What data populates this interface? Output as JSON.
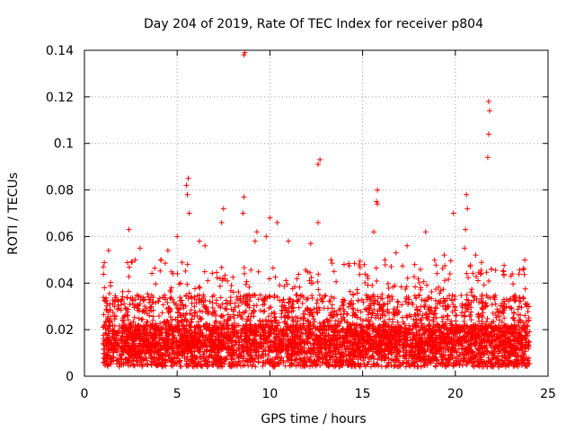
{
  "chart_data": {
    "type": "scatter",
    "title": "Day 204 of 2019, Rate Of TEC Index for receiver p804",
    "xlabel": "GPS time / hours",
    "ylabel": "ROTI / TECUs",
    "xlim": [
      0,
      25
    ],
    "ylim": [
      0,
      0.14
    ],
    "xticks": [
      0,
      5,
      10,
      15,
      20,
      25
    ],
    "yticks": [
      0,
      0.02,
      0.04,
      0.06,
      0.08,
      0.1,
      0.12,
      0.14
    ],
    "xtick_labels": [
      "0",
      "5",
      "10",
      "15",
      "20",
      "25"
    ],
    "ytick_labels": [
      "0",
      "0.02",
      "0.04",
      "0.06",
      "0.08",
      "0.1",
      "0.12",
      "0.14"
    ],
    "grid": true,
    "marker": "+",
    "color": "#ff0000",
    "series": [
      {
        "name": "ROTI",
        "x": [
          8.6,
          8.65,
          21.8,
          21.85,
          21.8,
          21.75,
          12.6,
          12.7,
          15.8,
          15.75,
          15.8,
          5.6,
          5.5,
          5.55,
          5.65,
          8.6,
          8.55,
          7.5,
          10.4,
          20.6,
          20.65,
          20.55,
          19.9,
          12.6,
          10.0,
          7.4,
          9.2,
          9.3,
          2.4,
          1.3,
          15.6,
          17.4,
          18.4,
          20.5,
          21.1,
          16.2,
          4.5,
          6.2,
          6.5,
          13.3,
          14.0,
          3.0,
          11.0,
          22.6,
          23.0,
          9.8,
          12.2,
          16.8,
          19.4,
          5.0
        ],
        "y": [
          0.138,
          0.139,
          0.118,
          0.114,
          0.104,
          0.094,
          0.091,
          0.093,
          0.08,
          0.075,
          0.074,
          0.085,
          0.082,
          0.078,
          0.07,
          0.077,
          0.07,
          0.072,
          0.066,
          0.078,
          0.072,
          0.063,
          0.07,
          0.066,
          0.068,
          0.066,
          0.058,
          0.062,
          0.063,
          0.054,
          0.062,
          0.056,
          0.062,
          0.055,
          0.052,
          0.05,
          0.054,
          0.058,
          0.056,
          0.05,
          0.048,
          0.055,
          0.058,
          0.045,
          0.043,
          0.06,
          0.057,
          0.053,
          0.052,
          0.06
        ]
      }
    ]
  }
}
